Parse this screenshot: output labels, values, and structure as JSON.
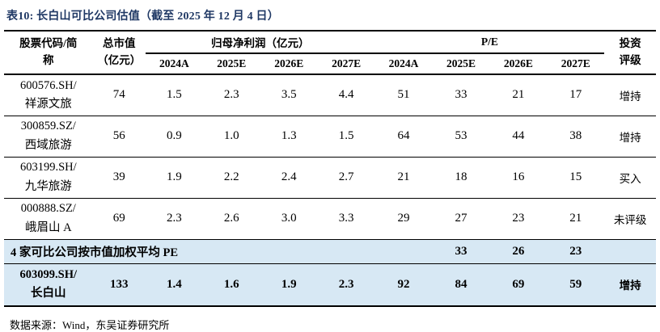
{
  "title": "表10:  长白山可比公司估值（截至 2025 年 12 月 4 日）",
  "colors": {
    "title_navy": "#1F3864",
    "row_highlight": "#D7E8F4",
    "border": "#000000"
  },
  "table": {
    "header": {
      "col_stock": "股票代码/简\n称",
      "col_mktcap": "总市值\n（亿元）",
      "group_profit": "归母净利润（亿元）",
      "group_pe": "P/E",
      "col_rating": "投资\n评级",
      "years": [
        "2024A",
        "2025E",
        "2026E",
        "2027E",
        "2024A",
        "2025E",
        "2026E",
        "2027E"
      ]
    },
    "rows": [
      {
        "name": "600576.SH/\n祥源文旅",
        "mktcap": "74",
        "values": [
          "1.5",
          "2.3",
          "3.5",
          "4.4",
          "51",
          "33",
          "21",
          "17"
        ],
        "rating": "增持"
      },
      {
        "name": "300859.SZ/\n西域旅游",
        "mktcap": "56",
        "values": [
          "0.9",
          "1.0",
          "1.3",
          "1.5",
          "64",
          "53",
          "44",
          "38"
        ],
        "rating": "增持"
      },
      {
        "name": "603199.SH/\n九华旅游",
        "mktcap": "39",
        "values": [
          "1.9",
          "2.2",
          "2.4",
          "2.7",
          "21",
          "18",
          "16",
          "15"
        ],
        "rating": "买入"
      },
      {
        "name": "000888.SZ/\n峨眉山 A",
        "mktcap": "69",
        "values": [
          "2.3",
          "2.6",
          "3.0",
          "3.3",
          "29",
          "27",
          "23",
          "21"
        ],
        "rating": "未评级"
      }
    ],
    "summary_row": {
      "label": "4 家可比公司按市值加权平均 PE",
      "values": [
        "33",
        "26",
        "23"
      ],
      "rating": ""
    },
    "target_row": {
      "name": "603099.SH/\n长白山",
      "mktcap": "133",
      "values": [
        "1.4",
        "1.6",
        "1.9",
        "2.3",
        "92",
        "84",
        "69",
        "59"
      ],
      "rating": "增持"
    }
  },
  "source": "数据来源：Wind，东吴证券研究所"
}
